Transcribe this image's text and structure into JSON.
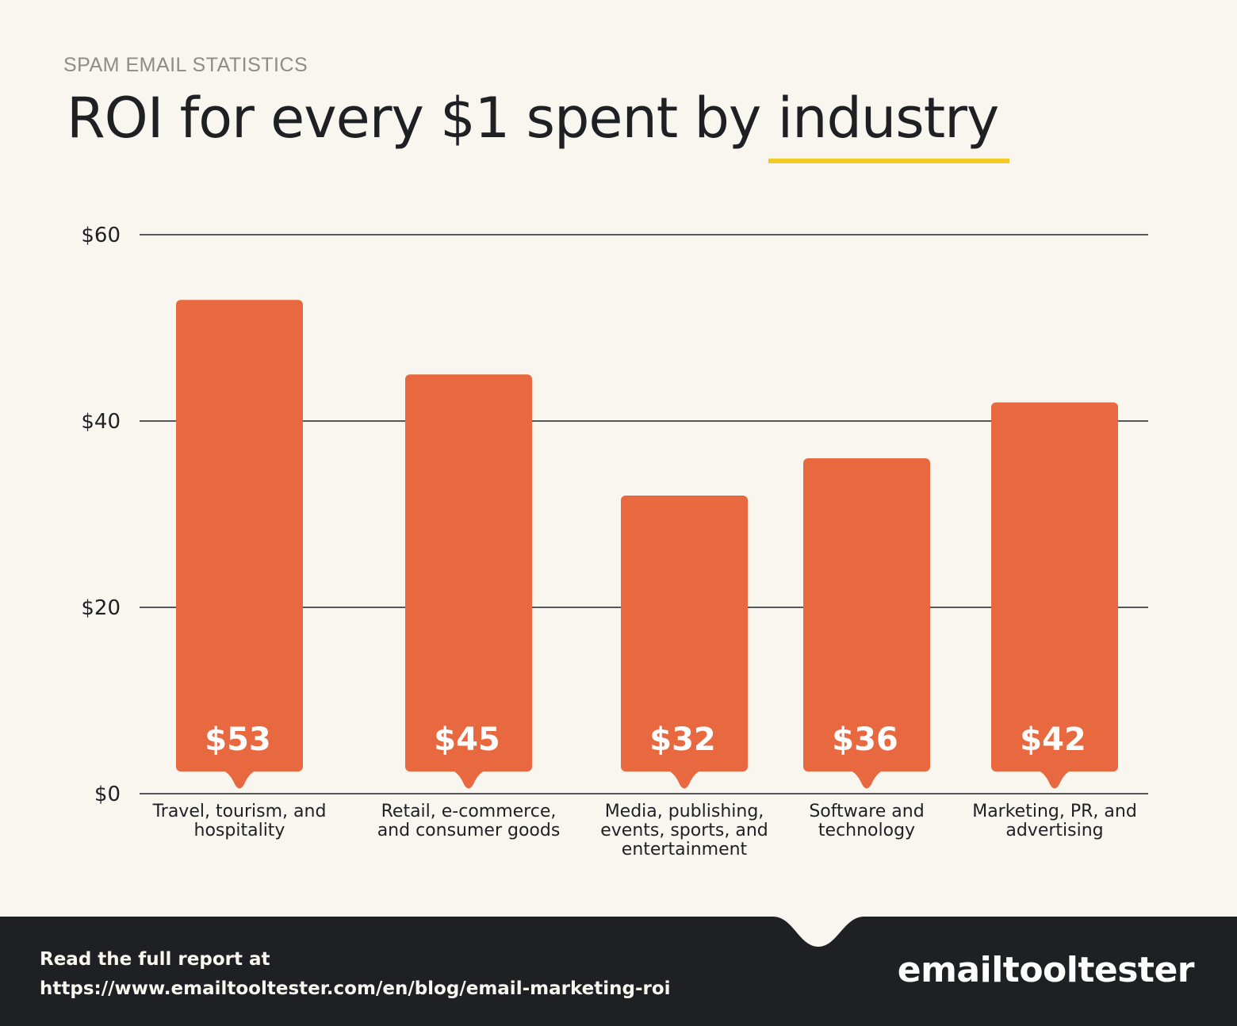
{
  "header": {
    "eyebrow": "SPAM EMAIL STATISTICS",
    "title_main": "ROI for every $1 spent by ",
    "title_highlight": "industry"
  },
  "colors": {
    "background": "#f9f6f0",
    "bar": "#e8693f",
    "highlight": "#f5c925",
    "footer": "#1f2023"
  },
  "chart_data": {
    "type": "bar",
    "title": "ROI for every $1 spent by industry",
    "xlabel": "",
    "ylabel": "",
    "ylim": [
      0,
      60
    ],
    "yticks": [
      0,
      20,
      40,
      60
    ],
    "ytick_labels": [
      "$0",
      "$20",
      "$40",
      "$60"
    ],
    "grid": true,
    "categories": [
      [
        "Travel, tourism, and",
        "hospitality"
      ],
      [
        "Retail, e-commerce,",
        "and consumer goods"
      ],
      [
        "Media, publishing,",
        "events, sports, and",
        "entertainment"
      ],
      [
        "Software and",
        "technology"
      ],
      [
        "Marketing, PR, and",
        "advertising"
      ]
    ],
    "values": [
      53,
      45,
      32,
      36,
      42
    ],
    "data_labels": [
      "$53",
      "$45",
      "$32",
      "$36",
      "$42"
    ]
  },
  "footer": {
    "line1": "Read the full report at",
    "line2": "https://www.emailtooltester.com/en/blog/email-marketing-roi",
    "logo": "emailtooltester"
  }
}
